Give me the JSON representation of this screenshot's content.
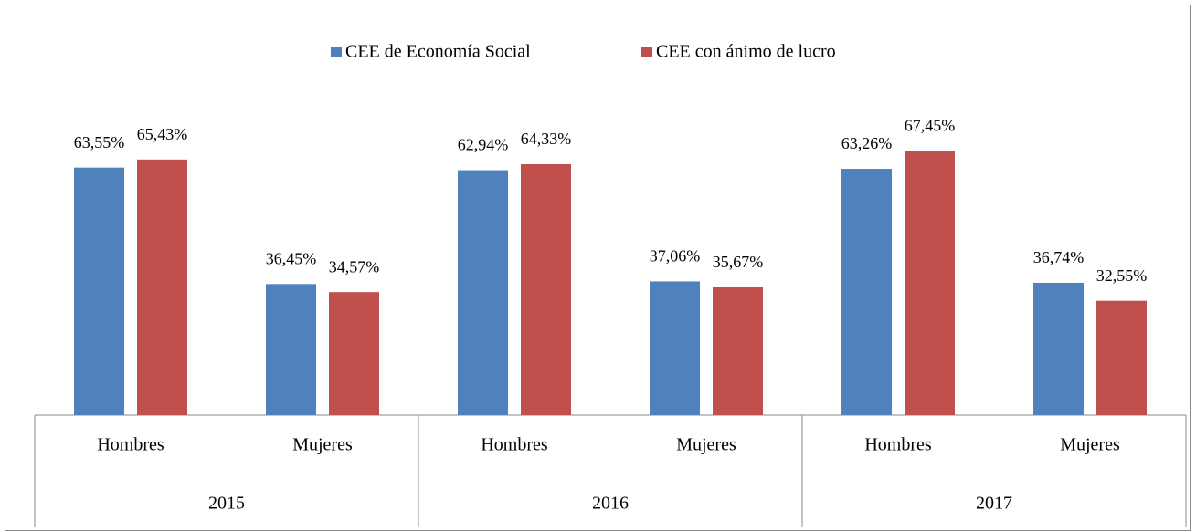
{
  "chart_data": {
    "type": "bar",
    "categories": [
      "Hombres",
      "Mujeres",
      "Hombres",
      "Mujeres",
      "Hombres",
      "Mujeres"
    ],
    "category_groups": [
      "2015",
      "2016",
      "2017"
    ],
    "series": [
      {
        "name": "CEE de Economía Social",
        "color": "#4f81bd",
        "values": [
          63.55,
          36.45,
          62.94,
          37.06,
          63.26,
          36.74
        ],
        "value_labels": [
          "63,55%",
          "36,45%",
          "62,94%",
          "37,06%",
          "63,26%",
          "36,74%"
        ]
      },
      {
        "name": "CEE con ánimo de lucro",
        "color": "#c0504d",
        "values": [
          65.43,
          34.57,
          64.33,
          35.67,
          67.45,
          32.55
        ],
        "value_labels": [
          "65,43%",
          "34,57%",
          "64,33%",
          "35,67%",
          "67,45%",
          "32,55%"
        ]
      }
    ],
    "legend": "top"
  }
}
